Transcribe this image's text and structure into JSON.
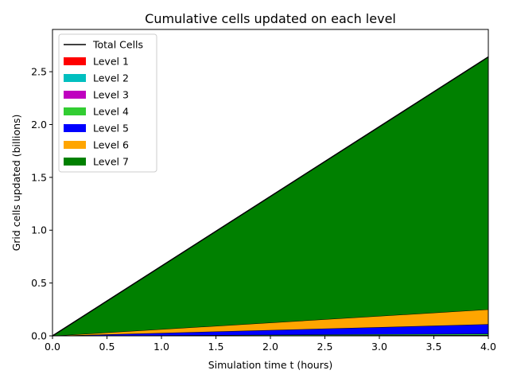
{
  "chart_data": {
    "type": "area",
    "title": "Cumulative cells updated on each level",
    "xlabel": "Simulation time t (hours)",
    "ylabel": "Grid cells updated (billions)",
    "xlim": [
      0.0,
      4.0
    ],
    "ylim": [
      0.0,
      2.9
    ],
    "xticks": [
      "0.0",
      "0.5",
      "1.0",
      "1.5",
      "2.0",
      "2.5",
      "3.0",
      "3.5",
      "4.0"
    ],
    "yticks": [
      "0.0",
      "0.5",
      "1.0",
      "1.5",
      "2.0",
      "2.5"
    ],
    "stacked": true,
    "legend_position": "top-left",
    "x": [
      0.0,
      4.0
    ],
    "series": [
      {
        "name": "Level 1",
        "color": "#ff0000",
        "values": [
          0.0,
          0.001
        ]
      },
      {
        "name": "Level 2",
        "color": "#00bfbf",
        "values": [
          0.0,
          0.002
        ]
      },
      {
        "name": "Level 3",
        "color": "#bf00bf",
        "values": [
          0.0,
          0.005
        ]
      },
      {
        "name": "Level 4",
        "color": "#32cd32",
        "values": [
          0.0,
          0.012
        ]
      },
      {
        "name": "Level 5",
        "color": "#0000ff",
        "values": [
          0.0,
          0.09
        ]
      },
      {
        "name": "Level 6",
        "color": "#ffa500",
        "values": [
          0.0,
          0.14
        ]
      },
      {
        "name": "Level 7",
        "color": "#008000",
        "values": [
          0.0,
          2.39
        ]
      }
    ],
    "total": {
      "name": "Total Cells",
      "color": "#000000",
      "values": [
        0.0,
        2.64
      ]
    }
  }
}
